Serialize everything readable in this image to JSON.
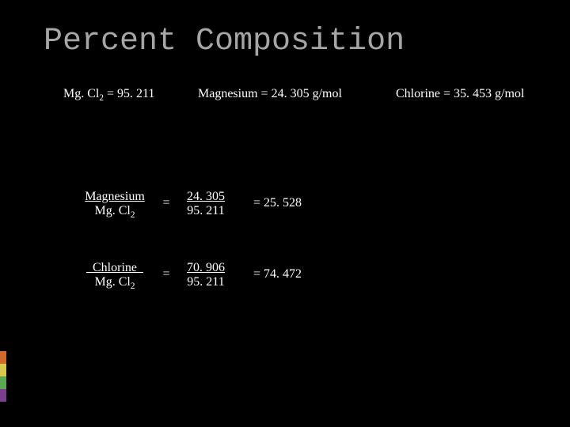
{
  "title": "Percent Composition",
  "header": {
    "compound_label": "Mg. Cl",
    "compound_sub": "2",
    "compound_value": " = 95. 211",
    "mg_label": "Magnesium = 24. 305 g/mol",
    "cl_label": "Chlorine = 35. 453 g/mol"
  },
  "eq1": {
    "numerator": "Magnesium",
    "denom_a": "Mg. Cl",
    "denom_sub": "2",
    "num_top": "24. 305",
    "num_bot": "95. 211",
    "result": "=  25. 528"
  },
  "eq2": {
    "numerator": "   Chlorine   ",
    "denom_a": "Mg. Cl",
    "denom_sub": "2",
    "num_top": "70. 906",
    "num_bot": "95. 211",
    "result": "=  74. 472"
  },
  "colors": {
    "bg": "#000000",
    "title": "#a6a6a6",
    "text": "#ffffff",
    "strip": [
      "#d06a2a",
      "#d6c94e",
      "#5aa84f",
      "#7a3f8c"
    ]
  }
}
